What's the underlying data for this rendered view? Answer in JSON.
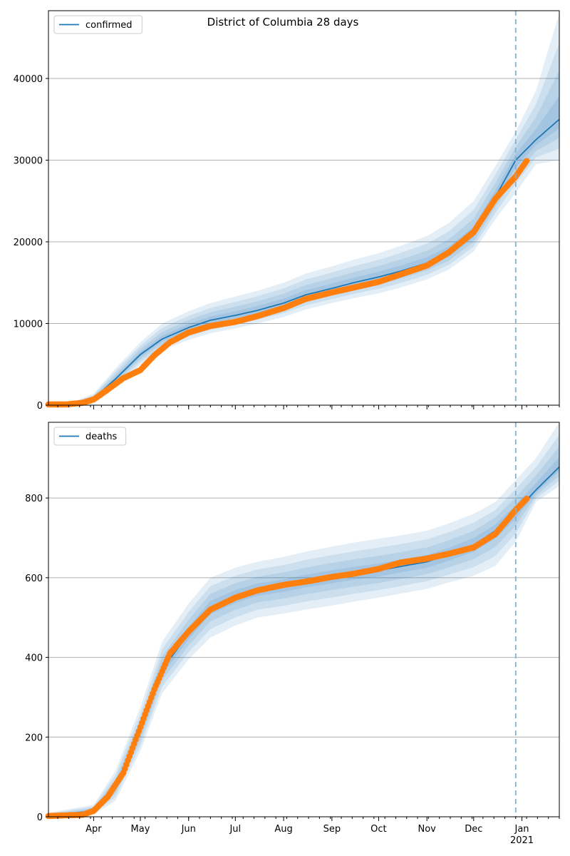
{
  "figure": {
    "title": "District of Columbia 28 days"
  },
  "colors": {
    "model": "#1f77b4",
    "observed": "#ff7f0e",
    "band": "#1f77b4",
    "grid": "#b0b0b0",
    "forecast_line": "#7fb2d6"
  },
  "chart_data": [
    {
      "type": "line",
      "title": "District of Columbia 28 days",
      "xlabel": "",
      "ylabel": "",
      "x_range": [
        "2020-03-03",
        "2021-01-25"
      ],
      "ylim": [
        0,
        48300
      ],
      "yticks": [
        0,
        10000,
        20000,
        30000,
        40000
      ],
      "ytick_labels": [
        "0",
        "10000",
        "20000",
        "30000",
        "40000"
      ],
      "xtick_labels": [
        "Apr",
        "May",
        "Jun",
        "Jul",
        "Aug",
        "Sep",
        "Oct",
        "Nov",
        "Dec",
        "Jan"
      ],
      "xtick_dates": [
        "2020-04-01",
        "2020-05-01",
        "2020-06-01",
        "2020-07-01",
        "2020-08-01",
        "2020-09-01",
        "2020-10-01",
        "2020-11-01",
        "2020-12-01",
        "2021-01-01"
      ],
      "xtick_sublabel": "2021",
      "grid": "horizontal",
      "legend": {
        "placement": "top-left",
        "entries": [
          "confirmed"
        ]
      },
      "forecast_start": "2020-12-28",
      "series": [
        {
          "name": "confirmed",
          "kind": "model",
          "x": [
            "2020-03-03",
            "2020-03-20",
            "2020-04-01",
            "2020-04-15",
            "2020-05-01",
            "2020-05-15",
            "2020-06-01",
            "2020-06-15",
            "2020-07-01",
            "2020-07-15",
            "2020-08-01",
            "2020-08-15",
            "2020-09-01",
            "2020-09-15",
            "2020-10-01",
            "2020-10-15",
            "2020-11-01",
            "2020-11-15",
            "2020-12-01",
            "2020-12-15",
            "2020-12-28",
            "2021-01-10",
            "2021-01-25"
          ],
          "y": [
            50,
            150,
            800,
            3200,
            6200,
            8100,
            9500,
            10400,
            11000,
            11600,
            12500,
            13500,
            14300,
            15000,
            15700,
            16400,
            17400,
            18600,
            21000,
            25500,
            30000,
            32500,
            35000
          ],
          "lower": [
            0,
            60,
            400,
            2300,
            4900,
            6700,
            8000,
            8800,
            9400,
            10000,
            10800,
            11700,
            12500,
            13100,
            13700,
            14400,
            15400,
            16600,
            18800,
            22800,
            26000,
            29500,
            30000
          ],
          "upper": [
            300,
            500,
            1400,
            4500,
            7700,
            10000,
            11500,
            12500,
            13300,
            14000,
            15000,
            16100,
            17000,
            17800,
            18600,
            19500,
            20700,
            22300,
            25000,
            29300,
            33500,
            38500,
            48000
          ]
        },
        {
          "name": "observed",
          "kind": "observed",
          "x": [
            "2020-03-03",
            "2020-03-15",
            "2020-03-25",
            "2020-04-01",
            "2020-04-10",
            "2020-04-20",
            "2020-05-01",
            "2020-05-10",
            "2020-05-20",
            "2020-06-01",
            "2020-06-15",
            "2020-07-01",
            "2020-07-15",
            "2020-08-01",
            "2020-08-15",
            "2020-09-01",
            "2020-09-15",
            "2020-10-01",
            "2020-10-15",
            "2020-11-01",
            "2020-11-15",
            "2020-12-01",
            "2020-12-15",
            "2020-12-28",
            "2021-01-04"
          ],
          "y": [
            100,
            100,
            300,
            700,
            1900,
            3300,
            4300,
            6100,
            7700,
            8900,
            9700,
            10200,
            10900,
            11900,
            13000,
            13800,
            14400,
            15100,
            16000,
            17100,
            18700,
            21200,
            25300,
            28000,
            29900
          ]
        }
      ]
    },
    {
      "type": "line",
      "xlabel": "",
      "ylabel": "",
      "x_range": [
        "2020-03-03",
        "2021-01-25"
      ],
      "ylim": [
        0,
        990
      ],
      "yticks": [
        0,
        200,
        400,
        600,
        800
      ],
      "ytick_labels": [
        "0",
        "200",
        "400",
        "600",
        "800"
      ],
      "xtick_labels": [
        "Apr",
        "May",
        "Jun",
        "Jul",
        "Aug",
        "Sep",
        "Oct",
        "Nov",
        "Dec",
        "Jan"
      ],
      "xtick_dates": [
        "2020-04-01",
        "2020-05-01",
        "2020-06-01",
        "2020-07-01",
        "2020-08-01",
        "2020-09-01",
        "2020-10-01",
        "2020-11-01",
        "2020-12-01",
        "2021-01-01"
      ],
      "xtick_sublabel": "2021",
      "grid": "horizontal",
      "legend": {
        "placement": "top-left",
        "entries": [
          "deaths"
        ]
      },
      "forecast_start": "2020-12-28",
      "series": [
        {
          "name": "deaths",
          "kind": "model",
          "x": [
            "2020-03-03",
            "2020-04-01",
            "2020-04-15",
            "2020-05-01",
            "2020-05-15",
            "2020-06-01",
            "2020-06-15",
            "2020-07-01",
            "2020-07-15",
            "2020-08-01",
            "2020-08-15",
            "2020-09-01",
            "2020-09-15",
            "2020-10-01",
            "2020-10-15",
            "2020-11-01",
            "2020-11-15",
            "2020-12-01",
            "2020-12-15",
            "2020-12-28",
            "2021-01-10",
            "2021-01-25"
          ],
          "y": [
            2,
            15,
            75,
            215,
            370,
            460,
            525,
            553,
            570,
            580,
            591,
            602,
            610,
            618,
            628,
            640,
            658,
            682,
            718,
            765,
            820,
            878
          ],
          "lower": [
            0,
            5,
            40,
            165,
            310,
            395,
            450,
            480,
            500,
            510,
            520,
            530,
            540,
            550,
            560,
            572,
            588,
            605,
            630,
            690,
            790,
            830
          ],
          "upper": [
            10,
            30,
            115,
            275,
            440,
            535,
            600,
            625,
            640,
            652,
            665,
            678,
            688,
            698,
            706,
            718,
            736,
            760,
            790,
            845,
            900,
            990
          ]
        },
        {
          "name": "observed",
          "kind": "observed",
          "x": [
            "2020-03-03",
            "2020-03-25",
            "2020-04-01",
            "2020-04-10",
            "2020-04-20",
            "2020-05-01",
            "2020-05-10",
            "2020-05-20",
            "2020-06-01",
            "2020-06-15",
            "2020-07-01",
            "2020-07-15",
            "2020-08-01",
            "2020-08-15",
            "2020-09-01",
            "2020-09-15",
            "2020-10-01",
            "2020-10-15",
            "2020-11-01",
            "2020-11-15",
            "2020-12-01",
            "2020-12-15",
            "2020-12-28",
            "2021-01-04"
          ],
          "y": [
            2,
            5,
            15,
            50,
            110,
            225,
            320,
            410,
            465,
            520,
            550,
            568,
            582,
            590,
            602,
            610,
            622,
            638,
            648,
            660,
            676,
            710,
            770,
            798
          ]
        }
      ]
    }
  ]
}
